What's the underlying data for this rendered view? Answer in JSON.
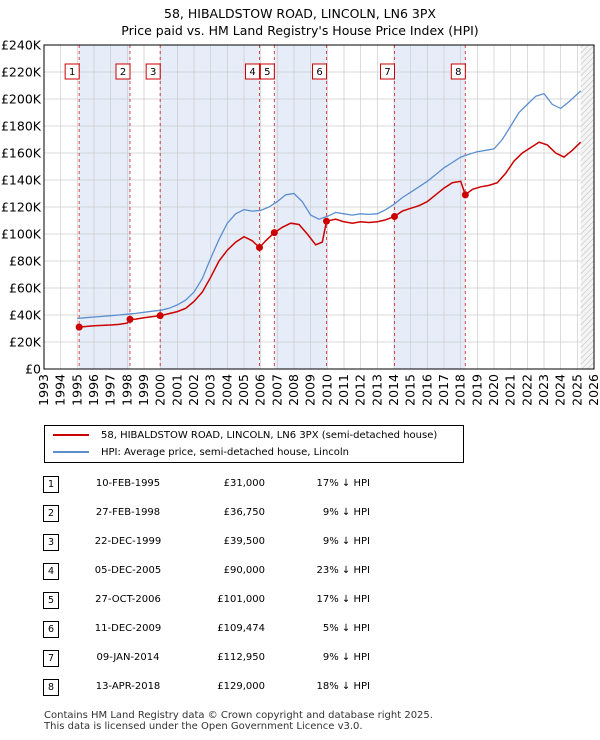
{
  "title_line1": "58, HIBALDSTOW ROAD, LINCOLN, LN6 3PX",
  "title_line2": "Price paid vs. HM Land Registry's House Price Index (HPI)",
  "chart_data": {
    "type": "line",
    "title": "58, HIBALDSTOW ROAD, LINCOLN, LN6 3PX — Price paid vs. HM Land Registry's House Price Index (HPI)",
    "xlim": [
      1993,
      2026
    ],
    "ylim": [
      0,
      240000
    ],
    "x_ticks": [
      1993,
      1994,
      1995,
      1996,
      1997,
      1998,
      1999,
      2000,
      2001,
      2002,
      2003,
      2004,
      2005,
      2006,
      2007,
      2008,
      2009,
      2010,
      2011,
      2012,
      2013,
      2014,
      2015,
      2016,
      2017,
      2018,
      2019,
      2020,
      2021,
      2022,
      2023,
      2024,
      2025,
      2026
    ],
    "y_ticks": [
      {
        "value": 0,
        "label": "£0"
      },
      {
        "value": 20000,
        "label": "£20K"
      },
      {
        "value": 40000,
        "label": "£40K"
      },
      {
        "value": 60000,
        "label": "£60K"
      },
      {
        "value": 80000,
        "label": "£80K"
      },
      {
        "value": 100000,
        "label": "£100K"
      },
      {
        "value": 120000,
        "label": "£120K"
      },
      {
        "value": 140000,
        "label": "£140K"
      },
      {
        "value": 160000,
        "label": "£160K"
      },
      {
        "value": 180000,
        "label": "£180K"
      },
      {
        "value": 200000,
        "label": "£200K"
      },
      {
        "value": 220000,
        "label": "£220K"
      },
      {
        "value": 240000,
        "label": "£240K"
      }
    ],
    "grid": true,
    "colors": {
      "property": "#cc0000",
      "hpi": "#5b8fd0",
      "shade": "#e6ecf8",
      "grid": "#cccccc"
    },
    "future_from": 2025.2,
    "series": [
      {
        "name": "58, HIBALDSTOW ROAD, LINCOLN, LN6 3PX (semi-detached house)",
        "points": [
          [
            1995.11,
            31000
          ],
          [
            1995.5,
            31500
          ],
          [
            1996,
            32000
          ],
          [
            1996.5,
            32300
          ],
          [
            1997,
            32600
          ],
          [
            1997.5,
            33000
          ],
          [
            1998,
            34000
          ],
          [
            1998.16,
            36750
          ],
          [
            1998.5,
            37000
          ],
          [
            1999,
            38000
          ],
          [
            1999.5,
            38800
          ],
          [
            1999.97,
            39500
          ],
          [
            2000.5,
            41000
          ],
          [
            2001,
            42500
          ],
          [
            2001.5,
            45000
          ],
          [
            2002,
            50000
          ],
          [
            2002.5,
            57000
          ],
          [
            2003,
            68000
          ],
          [
            2003.5,
            80000
          ],
          [
            2004,
            88000
          ],
          [
            2004.5,
            94000
          ],
          [
            2005,
            98000
          ],
          [
            2005.5,
            95000
          ],
          [
            2005.93,
            90000
          ],
          [
            2006.3,
            95000
          ],
          [
            2006.82,
            101000
          ],
          [
            2007.3,
            105000
          ],
          [
            2007.8,
            108000
          ],
          [
            2008.3,
            107000
          ],
          [
            2008.8,
            100000
          ],
          [
            2009.3,
            92000
          ],
          [
            2009.7,
            94000
          ],
          [
            2009.95,
            109474
          ],
          [
            2010.5,
            111000
          ],
          [
            2011,
            109000
          ],
          [
            2011.5,
            108000
          ],
          [
            2012,
            109000
          ],
          [
            2012.5,
            108500
          ],
          [
            2013,
            109000
          ],
          [
            2013.5,
            110500
          ],
          [
            2014.03,
            112950
          ],
          [
            2014.5,
            117000
          ],
          [
            2015,
            119000
          ],
          [
            2015.5,
            121000
          ],
          [
            2016,
            124000
          ],
          [
            2016.5,
            129000
          ],
          [
            2017,
            134000
          ],
          [
            2017.5,
            138000
          ],
          [
            2018,
            139000
          ],
          [
            2018.28,
            129000
          ],
          [
            2018.7,
            133000
          ],
          [
            2019.2,
            135000
          ],
          [
            2019.7,
            136000
          ],
          [
            2020.2,
            138000
          ],
          [
            2020.7,
            145000
          ],
          [
            2021.2,
            154000
          ],
          [
            2021.7,
            160000
          ],
          [
            2022.2,
            164000
          ],
          [
            2022.7,
            168000
          ],
          [
            2023.2,
            166000
          ],
          [
            2023.7,
            160000
          ],
          [
            2024.2,
            157000
          ],
          [
            2024.7,
            162000
          ],
          [
            2025.2,
            168000
          ]
        ]
      },
      {
        "name": "HPI: Average price, semi-detached house, Lincoln",
        "points": [
          [
            1995,
            37500
          ],
          [
            1995.5,
            38000
          ],
          [
            1996,
            38500
          ],
          [
            1996.5,
            39000
          ],
          [
            1997,
            39500
          ],
          [
            1997.5,
            40000
          ],
          [
            1998,
            40600
          ],
          [
            1998.5,
            41200
          ],
          [
            1999,
            42000
          ],
          [
            1999.5,
            42800
          ],
          [
            2000,
            43500
          ],
          [
            2000.5,
            45000
          ],
          [
            2001,
            47500
          ],
          [
            2001.5,
            51000
          ],
          [
            2002,
            57000
          ],
          [
            2002.5,
            67000
          ],
          [
            2003,
            82000
          ],
          [
            2003.5,
            96000
          ],
          [
            2004,
            108000
          ],
          [
            2004.5,
            115000
          ],
          [
            2005,
            118000
          ],
          [
            2005.5,
            117000
          ],
          [
            2006,
            117500
          ],
          [
            2006.5,
            120000
          ],
          [
            2007,
            124000
          ],
          [
            2007.5,
            129000
          ],
          [
            2008,
            130000
          ],
          [
            2008.5,
            124000
          ],
          [
            2009,
            114000
          ],
          [
            2009.5,
            111000
          ],
          [
            2010,
            113000
          ],
          [
            2010.5,
            116000
          ],
          [
            2011,
            115000
          ],
          [
            2011.5,
            114000
          ],
          [
            2012,
            115000
          ],
          [
            2012.5,
            114500
          ],
          [
            2013,
            115000
          ],
          [
            2013.5,
            118000
          ],
          [
            2014,
            122000
          ],
          [
            2014.5,
            127000
          ],
          [
            2015,
            131000
          ],
          [
            2015.5,
            135000
          ],
          [
            2016,
            139000
          ],
          [
            2016.5,
            144000
          ],
          [
            2017,
            149000
          ],
          [
            2017.5,
            153000
          ],
          [
            2018,
            157000
          ],
          [
            2018.5,
            159000
          ],
          [
            2019,
            161000
          ],
          [
            2019.5,
            162000
          ],
          [
            2020,
            163000
          ],
          [
            2020.5,
            170000
          ],
          [
            2021,
            180000
          ],
          [
            2021.5,
            190000
          ],
          [
            2022,
            196000
          ],
          [
            2022.5,
            202000
          ],
          [
            2023,
            204000
          ],
          [
            2023.5,
            196000
          ],
          [
            2024,
            193000
          ],
          [
            2024.5,
            198000
          ],
          [
            2025.2,
            206000
          ]
        ]
      }
    ],
    "sales": [
      {
        "id": "1",
        "x": 1995.11,
        "price": 31000
      },
      {
        "id": "2",
        "x": 1998.16,
        "price": 36750
      },
      {
        "id": "3",
        "x": 1999.97,
        "price": 39500
      },
      {
        "id": "4",
        "x": 2005.93,
        "price": 90000
      },
      {
        "id": "5",
        "x": 2006.82,
        "price": 101000
      },
      {
        "id": "6",
        "x": 2009.95,
        "price": 109474
      },
      {
        "id": "7",
        "x": 2014.03,
        "price": 112950
      },
      {
        "id": "8",
        "x": 2018.28,
        "price": 129000
      }
    ],
    "shaded_periods": [
      [
        1995.11,
        1998.16
      ],
      [
        1999.97,
        2005.93
      ],
      [
        2006.82,
        2009.95
      ],
      [
        2014.03,
        2018.28
      ]
    ]
  },
  "legend": {
    "property_label": "58, HIBALDSTOW ROAD, LINCOLN, LN6 3PX (semi-detached house)",
    "hpi_label": "HPI: Average price, semi-detached house, Lincoln"
  },
  "transactions": [
    {
      "num": "1",
      "date": "10-FEB-1995",
      "price": "£31,000",
      "hpi": "17% ↓ HPI"
    },
    {
      "num": "2",
      "date": "27-FEB-1998",
      "price": "£36,750",
      "hpi": "9% ↓ HPI"
    },
    {
      "num": "3",
      "date": "22-DEC-1999",
      "price": "£39,500",
      "hpi": "9% ↓ HPI"
    },
    {
      "num": "4",
      "date": "05-DEC-2005",
      "price": "£90,000",
      "hpi": "23% ↓ HPI"
    },
    {
      "num": "5",
      "date": "27-OCT-2006",
      "price": "£101,000",
      "hpi": "17% ↓ HPI"
    },
    {
      "num": "6",
      "date": "11-DEC-2009",
      "price": "£109,474",
      "hpi": "5% ↓ HPI"
    },
    {
      "num": "7",
      "date": "09-JAN-2014",
      "price": "£112,950",
      "hpi": "9% ↓ HPI"
    },
    {
      "num": "8",
      "date": "13-APR-2018",
      "price": "£129,000",
      "hpi": "18% ↓ HPI"
    }
  ],
  "footer_line1": "Contains HM Land Registry data © Crown copyright and database right 2025.",
  "footer_line2": "This data is licensed under the Open Government Licence v3.0."
}
